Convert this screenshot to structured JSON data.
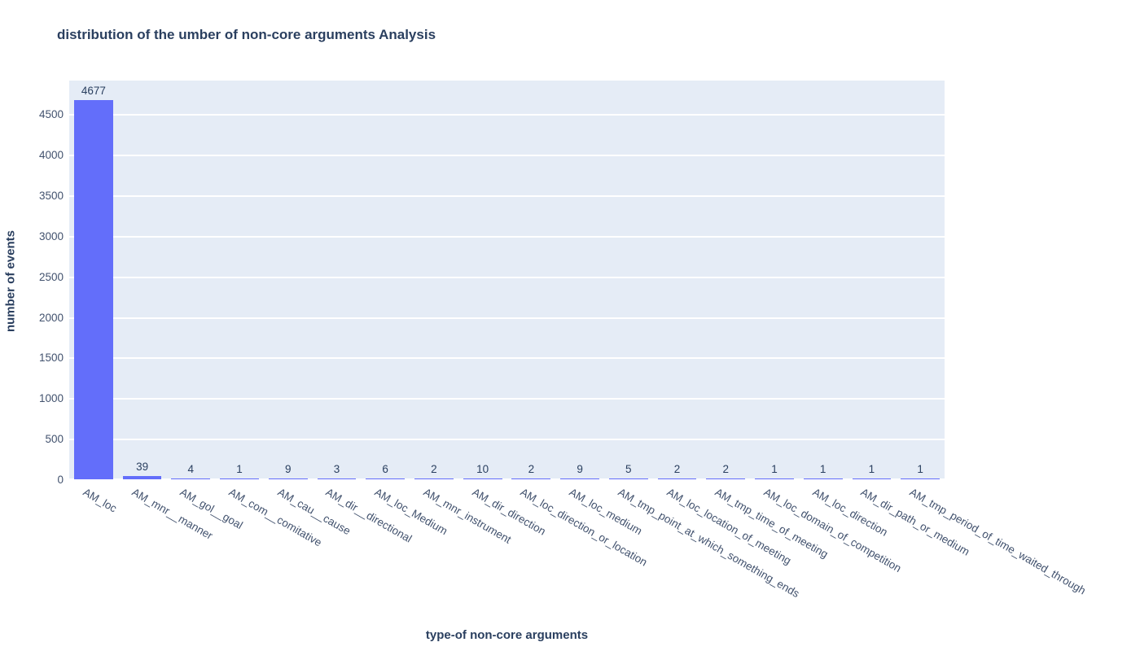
{
  "chart_data": {
    "type": "bar",
    "title": "distribution of the umber of non-core arguments Analysis",
    "xlabel": "type-of non-core arguments",
    "ylabel": "number of events",
    "categories": [
      "AM_loc",
      "AM_mnr__manner",
      "AM_gol__goal",
      "AM_com__comitative",
      "AM_cau__cause",
      "AM_dir__directional",
      "AM_loc_Medium",
      "AM_mnr_instrument",
      "AM_dir_direction",
      "AM_loc_direction_or_location",
      "AM_loc_medium",
      "AM_tmp_point_at_which_something_ends",
      "AM_loc_location_of_meeting",
      "AM_tmp_time_of_meeting",
      "AM_loc_domain_of_competition",
      "AM_loc_direction",
      "AM_dir_path_or_medium",
      "AM_tmp_period_of_time_waited_through"
    ],
    "values": [
      4677,
      39,
      4,
      1,
      9,
      3,
      6,
      2,
      10,
      2,
      9,
      5,
      2,
      2,
      1,
      1,
      1,
      1
    ],
    "bar_text_position": "outside",
    "ylim": [
      0,
      4925
    ],
    "yticks": [
      0,
      500,
      1000,
      1500,
      2000,
      2500,
      3000,
      3500,
      4000,
      4500
    ],
    "xtick_angle_deg": 30,
    "grid": true,
    "legend": null,
    "colors": {
      "bar": "#636EFA",
      "plot_background": "#E5ECF6",
      "gridline": "#FFFFFF",
      "title_text": "#2a3f5f",
      "tick_text": "#42526e",
      "paper_background": "#FFFFFF"
    }
  }
}
